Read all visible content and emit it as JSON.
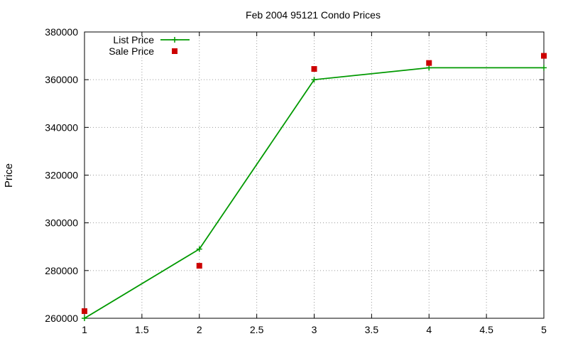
{
  "chart_data": {
    "type": "line",
    "title": "Feb 2004 95121 Condo Prices",
    "xlabel": "",
    "ylabel": "Price",
    "xlim": [
      1,
      5
    ],
    "ylim": [
      260000,
      380000
    ],
    "xticks": [
      "1",
      "1.5",
      "2",
      "2.5",
      "3",
      "3.5",
      "4",
      "4.5",
      "5"
    ],
    "yticks": [
      "260000",
      "280000",
      "300000",
      "320000",
      "340000",
      "360000",
      "380000"
    ],
    "grid": true,
    "legend_position": "top-left",
    "series": [
      {
        "name": "List Price",
        "style": "linespoints",
        "marker": "plus",
        "color": "#009900",
        "x": [
          1,
          2,
          3,
          4,
          5
        ],
        "y": [
          260000,
          289000,
          360000,
          365000,
          365000
        ]
      },
      {
        "name": "Sale Price",
        "style": "points",
        "marker": "square",
        "color": "#cc0000",
        "x": [
          1,
          2,
          3,
          4,
          5
        ],
        "y": [
          263000,
          282000,
          364500,
          367000,
          370000
        ]
      }
    ]
  }
}
